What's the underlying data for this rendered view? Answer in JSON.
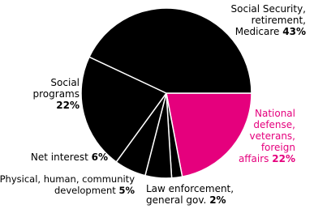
{
  "chart_data": {
    "type": "pie",
    "categories": [
      "National defense, veterans, foreign affairs",
      "Law enforcement, general gov.",
      "Physical, human, community development",
      "Net interest",
      "Social programs",
      "Social Security, retirement, Medicare"
    ],
    "values": [
      22,
      2,
      5,
      6,
      22,
      43
    ],
    "value_labels": [
      "22%",
      "2%",
      "5%",
      "6%",
      "22%",
      "43%"
    ],
    "colors": [
      "#e5007d",
      "#000000",
      "#000000",
      "#000000",
      "#000000",
      "#000000"
    ]
  }
}
